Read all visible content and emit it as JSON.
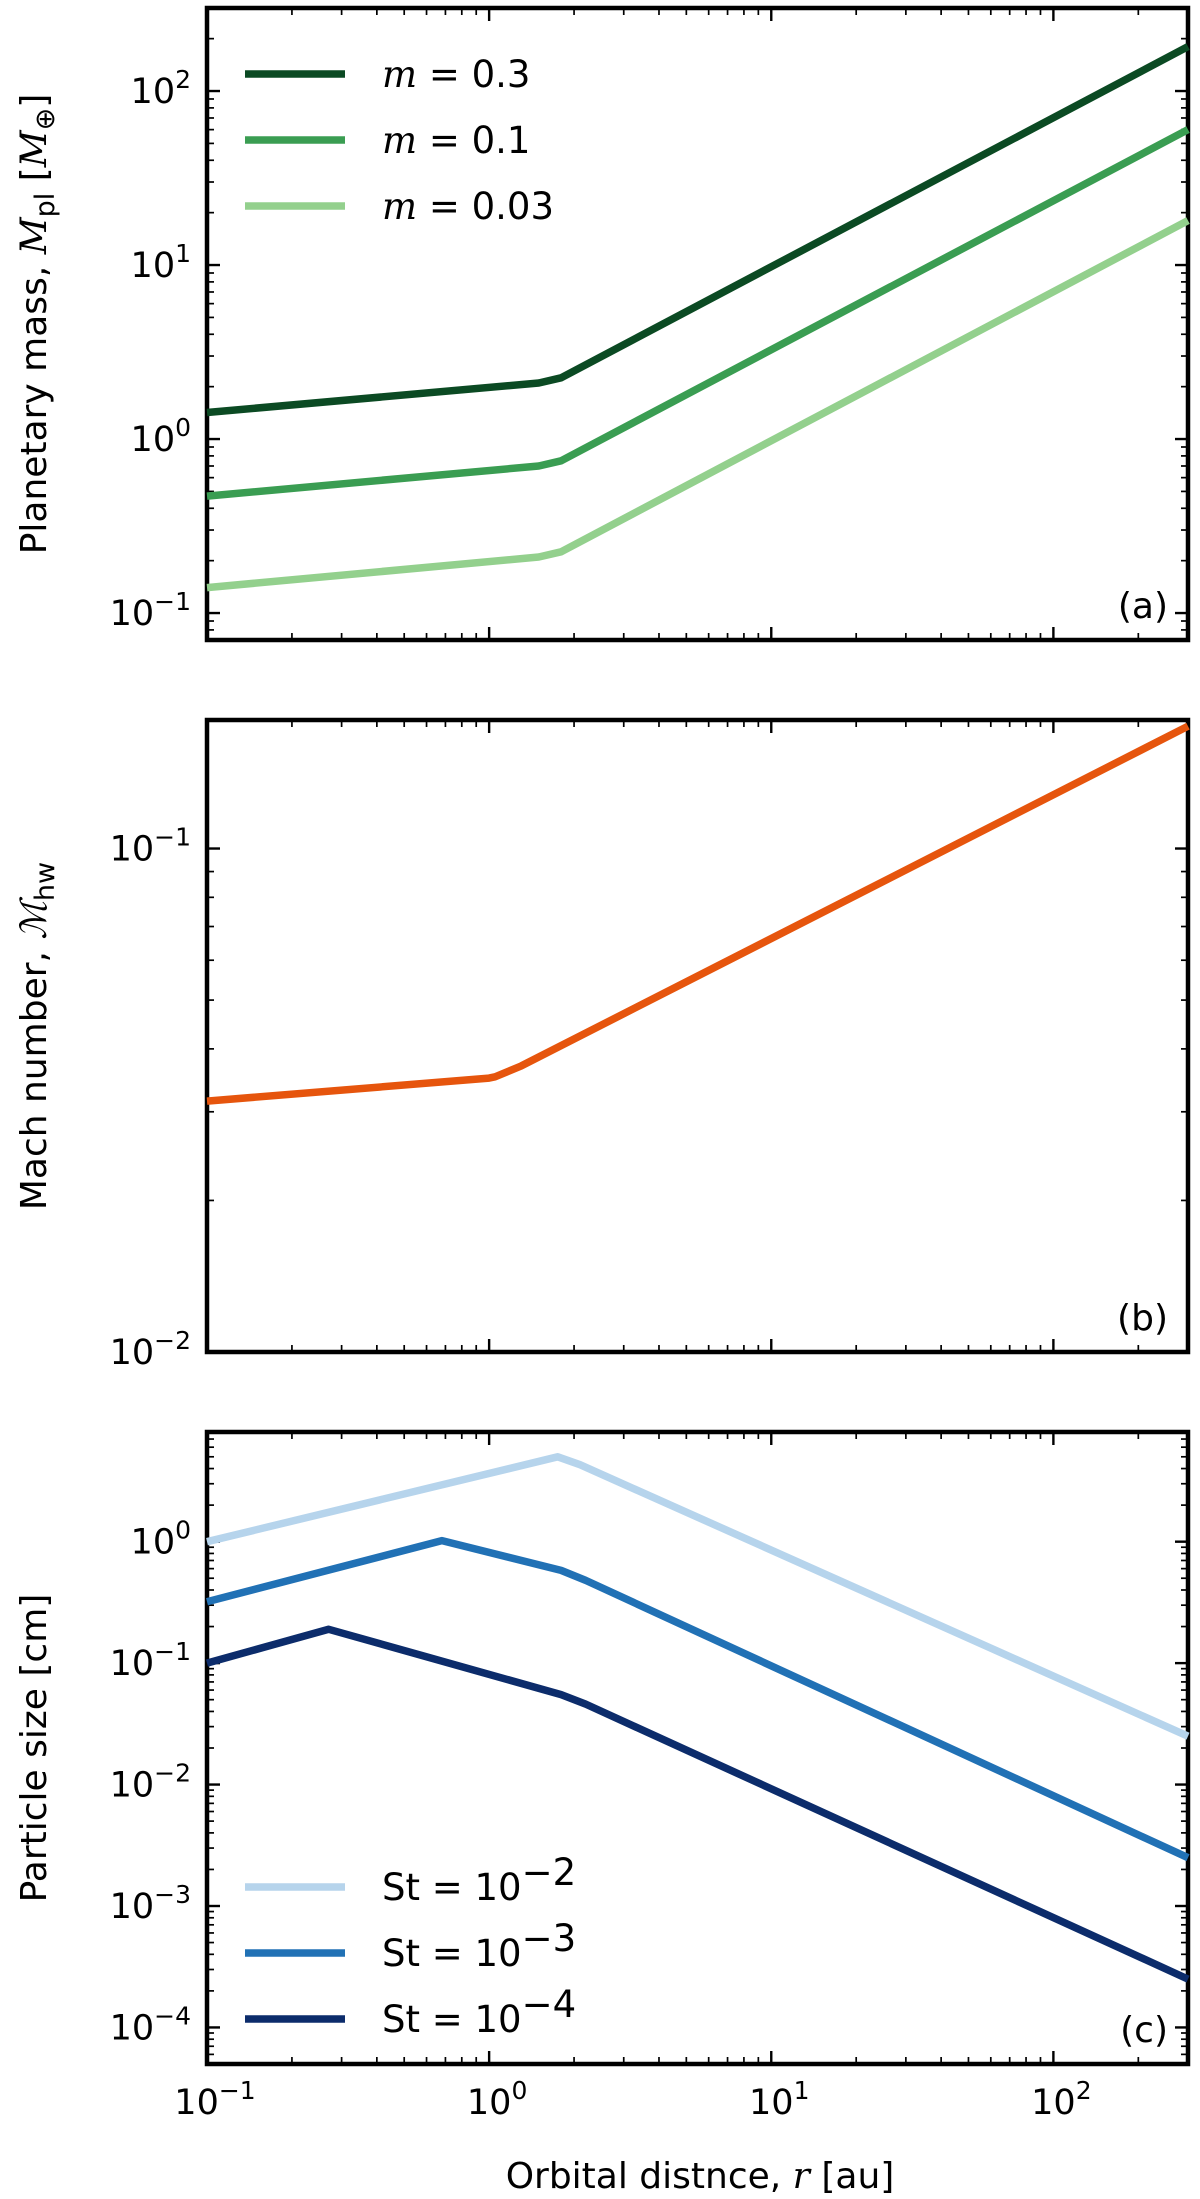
{
  "figure": {
    "xlabel": "Orbital distnce, r [au]",
    "xlabel_parts": {
      "prefix": "Orbital distnce, ",
      "var": "r",
      "suffix": " [au]"
    },
    "xscale": "log",
    "xlim": [
      0.1,
      300
    ],
    "x_ticks": [
      {
        "value": 0.1,
        "base": "10",
        "exp": "−1"
      },
      {
        "value": 1,
        "base": "10",
        "exp": "0"
      },
      {
        "value": 10,
        "base": "10",
        "exp": "1"
      },
      {
        "value": 100,
        "base": "10",
        "exp": "2"
      }
    ]
  },
  "chart_data": [
    {
      "type": "line",
      "panel_label": "(a)",
      "ylabel": "Planetary mass, M_pl [M_⊕]",
      "ylabel_parts": {
        "prefix": "Planetary mass, ",
        "var": "M",
        "sub": "pl",
        "bracket_open": " [",
        "unit": "M",
        "unit_sub": "⊕",
        "bracket_close": "]"
      },
      "xscale": "log",
      "yscale": "log",
      "xlim": [
        0.1,
        300
      ],
      "ylim": [
        0.07,
        300
      ],
      "y_ticks": [
        {
          "value": 0.1,
          "base": "10",
          "exp": "−1"
        },
        {
          "value": 1,
          "base": "10",
          "exp": "0"
        },
        {
          "value": 10,
          "base": "10",
          "exp": "1"
        },
        {
          "value": 100,
          "base": "10",
          "exp": "2"
        }
      ],
      "legend": {
        "location": "upper-left"
      },
      "series": [
        {
          "name": "m = 0.3",
          "legend_var": "m",
          "legend_value": "0.3",
          "color": "#0b4a23",
          "x": [
            0.1,
            1.5,
            1.8,
            300
          ],
          "y": [
            1.42,
            2.1,
            2.25,
            180
          ]
        },
        {
          "name": "m = 0.1",
          "legend_var": "m",
          "legend_value": "0.1",
          "color": "#3a9d52",
          "x": [
            0.1,
            1.5,
            1.8,
            300
          ],
          "y": [
            0.47,
            0.7,
            0.75,
            60
          ]
        },
        {
          "name": "m = 0.03",
          "legend_var": "m",
          "legend_value": "0.03",
          "color": "#93d08d",
          "x": [
            0.1,
            1.5,
            1.8,
            300
          ],
          "y": [
            0.14,
            0.21,
            0.225,
            18
          ]
        }
      ]
    },
    {
      "type": "line",
      "panel_label": "(b)",
      "ylabel": "Mach number, M_hw",
      "ylabel_parts": {
        "prefix": "Mach number, ",
        "var": "ℳ",
        "sub": "hw"
      },
      "xscale": "log",
      "yscale": "log",
      "xlim": [
        0.1,
        300
      ],
      "ylim": [
        0.01,
        0.18
      ],
      "y_ticks": [
        {
          "value": 0.01,
          "base": "10",
          "exp": "−2"
        },
        {
          "value": 0.1,
          "base": "10",
          "exp": "−1"
        }
      ],
      "series": [
        {
          "name": "Mach number",
          "color": "#e6550d",
          "x": [
            0.1,
            1.0,
            1.05,
            1.3,
            300
          ],
          "y": [
            0.0315,
            0.035,
            0.0352,
            0.037,
            0.175
          ]
        }
      ]
    },
    {
      "type": "line",
      "panel_label": "(c)",
      "ylabel": "Particle size [cm]",
      "xscale": "log",
      "yscale": "log",
      "xlim": [
        0.1,
        300
      ],
      "ylim": [
        5e-05,
        8
      ],
      "y_ticks": [
        {
          "value": 0.0001,
          "base": "10",
          "exp": "−4"
        },
        {
          "value": 0.001,
          "base": "10",
          "exp": "−3"
        },
        {
          "value": 0.01,
          "base": "10",
          "exp": "−2"
        },
        {
          "value": 0.1,
          "base": "10",
          "exp": "−1"
        },
        {
          "value": 1,
          "base": "10",
          "exp": "0"
        }
      ],
      "legend": {
        "location": "lower-left"
      },
      "series": [
        {
          "name": "St = 10^-2",
          "legend_var": "St",
          "legend_exp": "−2",
          "color": "#b6d4ec",
          "x": [
            0.1,
            1.75,
            2.1,
            300
          ],
          "y": [
            1.0,
            5.0,
            4.3,
            0.025
          ]
        },
        {
          "name": "St = 10^-3",
          "legend_var": "St",
          "legend_exp": "−3",
          "color": "#2171b5",
          "x": [
            0.1,
            0.68,
            1.8,
            2.2,
            300
          ],
          "y": [
            0.32,
            1.02,
            0.58,
            0.48,
            0.0025
          ]
        },
        {
          "name": "St = 10^-4",
          "legend_var": "St",
          "legend_exp": "−4",
          "color": "#0c2c6b",
          "x": [
            0.1,
            0.27,
            1.8,
            2.2,
            300
          ],
          "y": [
            0.1,
            0.19,
            0.055,
            0.046,
            0.00025
          ]
        }
      ]
    }
  ]
}
